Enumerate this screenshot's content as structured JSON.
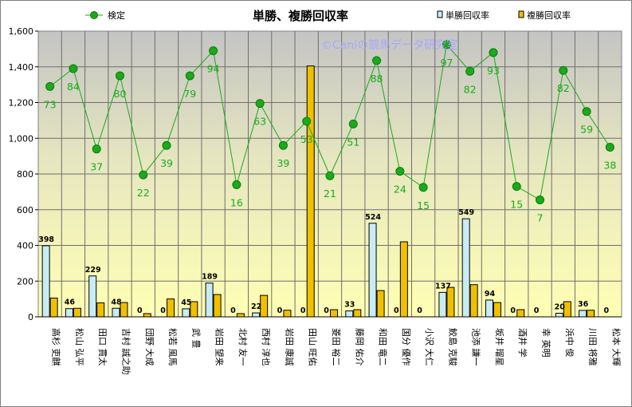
{
  "chart_data": {
    "type": "bar",
    "title": "単勝、複勝回収率",
    "watermark": "©Caniの競馬データ研究室",
    "ylim": [
      0,
      1600
    ],
    "yticks": [
      "0",
      "200",
      "400",
      "600",
      "800",
      "1,000",
      "1,200",
      "1,400",
      "1,600"
    ],
    "grid": "horizontal",
    "legend_position": "top",
    "categories": [
      "高杉 吏麒",
      "松山 弘平",
      "田口 貫太",
      "吉村 誠之助",
      "団野 大成",
      "松若 風馬",
      "武 豊",
      "岩田 望来",
      "北村 友一",
      "西村 淳也",
      "岩田 康誠",
      "田山 旺佑",
      "菱田 裕二",
      "藤岡 佑介",
      "和田 竜二",
      "国分 優作",
      "小沢 大仁",
      "鮫島 克駿",
      "池添 謙一",
      "坂井 瑠星",
      "酒井 学",
      "幸 英明",
      "浜中 俊",
      "川田 将雅",
      "松本 大輝"
    ],
    "series": [
      {
        "name": "単勝回収率",
        "type": "bar",
        "color": "#c8ecf4",
        "values": [
          398,
          46,
          229,
          48,
          0,
          0,
          45,
          189,
          0,
          22,
          0,
          0,
          0,
          33,
          524,
          0,
          0,
          137,
          549,
          94,
          0,
          0,
          20,
          36,
          0
        ],
        "labels": [
          "398",
          "46",
          "229",
          "48",
          "0",
          "0",
          "45",
          "189",
          "0",
          "22",
          "0",
          "0",
          "0",
          "33",
          "524",
          "0",
          "0",
          "137",
          "549",
          "94",
          "0",
          "0",
          "20",
          "36",
          "0"
        ]
      },
      {
        "name": "複勝回収率",
        "type": "bar",
        "color": "#f0c000",
        "values": [
          105,
          48,
          78,
          80,
          18,
          100,
          85,
          125,
          18,
          120,
          37,
          1405,
          40,
          40,
          147,
          420,
          0,
          165,
          180,
          80,
          40,
          0,
          85,
          37,
          0
        ]
      },
      {
        "name": "検定",
        "type": "line",
        "color": "#1aaa1a",
        "values": [
          1290,
          1390,
          940,
          1350,
          795,
          960,
          1350,
          1490,
          740,
          1195,
          960,
          1095,
          790,
          1080,
          1435,
          815,
          725,
          1525,
          1375,
          1480,
          730,
          655,
          1380,
          1150,
          950
        ],
        "labels": [
          "73",
          "84",
          "37",
          "80",
          "22",
          "39",
          "79",
          "94",
          "16",
          "63",
          "39",
          "53",
          "21",
          "51",
          "88",
          "24",
          "15",
          "97",
          "82",
          "93",
          "15",
          "7",
          "82",
          "59",
          "38"
        ]
      }
    ]
  }
}
